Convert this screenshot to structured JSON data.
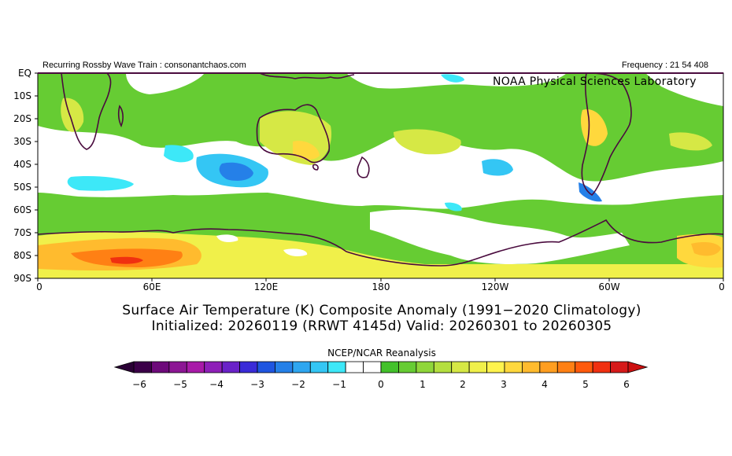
{
  "header": {
    "left_text": "Recurring Rossby Wave Train : consonantchaos.com",
    "right_text": "Frequency : 21 54 408",
    "lab_text": "NOAA Physical Sciences Laboratory"
  },
  "titles": {
    "line1": "Surface Air Temperature (K) Composite Anomaly (1991−2020 Climatology)",
    "line2": "Initialized: 20260119 (RRWT 4145d) Valid: 20260301 to 20260305"
  },
  "axes": {
    "y_labels": [
      "EQ",
      "10S",
      "20S",
      "30S",
      "40S",
      "50S",
      "60S",
      "70S",
      "80S",
      "90S"
    ],
    "x_labels": [
      "0",
      "60E",
      "120E",
      "180",
      "120W",
      "60W",
      "0"
    ]
  },
  "colorbar": {
    "title": "NCEP/NCAR Reanalysis",
    "tick_labels": [
      "−6",
      "−5",
      "−4",
      "−3",
      "−2",
      "−1",
      "0",
      "1",
      "2",
      "3",
      "4",
      "5",
      "6"
    ],
    "colors": [
      "#3b0048",
      "#6d0a7a",
      "#8c1694",
      "#a81aa8",
      "#8e1fb8",
      "#6a22c8",
      "#3a2bd8",
      "#1f55e0",
      "#2580e8",
      "#2ea6f0",
      "#34c6f4",
      "#3de8f8",
      "#ffffff",
      "#ffffff",
      "#43c12b",
      "#66cc33",
      "#8fd63a",
      "#b4df3f",
      "#d6e845",
      "#f0f04a",
      "#fff34d",
      "#ffd83d",
      "#ffbb2e",
      "#ff9e20",
      "#ff8014",
      "#ff5a0c",
      "#f03010",
      "#d61a1a"
    ],
    "left_arrow_color": "#2a0035",
    "right_arrow_color": "#cc1010"
  }
}
